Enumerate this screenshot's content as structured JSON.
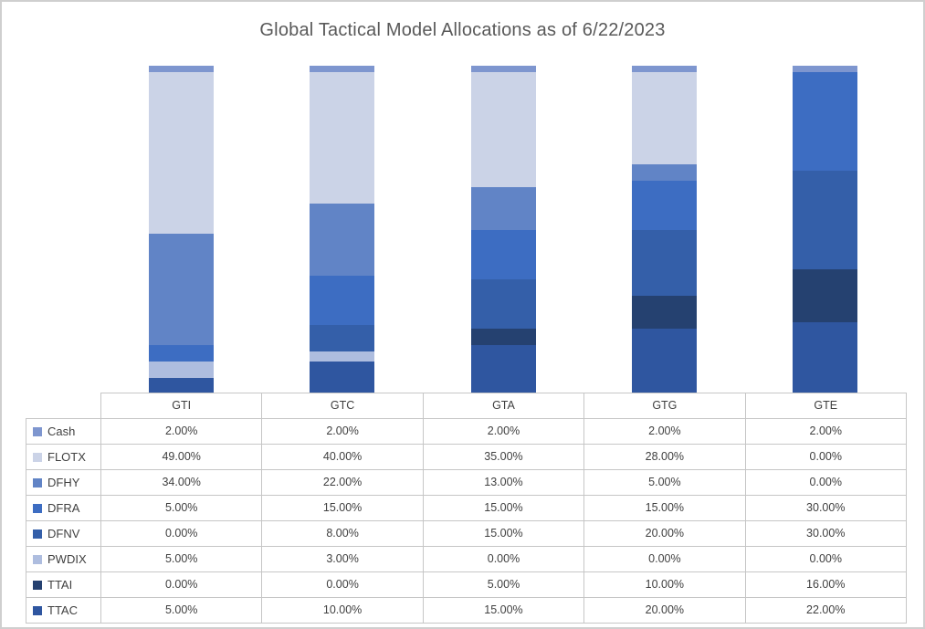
{
  "window": {
    "background": "#FFFFFF",
    "border_color": "#CFCFCF"
  },
  "chart_data": {
    "type": "bar",
    "variant": "stacked-column-100pct",
    "title": "Global Tactical Model Allocations as of 6/22/2023",
    "title_color": "#595959",
    "categories": [
      "GTI",
      "GTC",
      "GTA",
      "GTG",
      "GTE"
    ],
    "series": [
      {
        "name": "Cash",
        "color": "#7E96CF",
        "values": [
          2,
          2,
          2,
          2,
          2
        ]
      },
      {
        "name": "FLOTX",
        "color": "#CBD3E7",
        "values": [
          49,
          40,
          35,
          28,
          0
        ]
      },
      {
        "name": "DFHY",
        "color": "#6184C6",
        "values": [
          34,
          22,
          13,
          5,
          0
        ]
      },
      {
        "name": "DFRA",
        "color": "#3D6DC2",
        "values": [
          5,
          15,
          15,
          15,
          30
        ]
      },
      {
        "name": "DFNV",
        "color": "#345FA9",
        "values": [
          0,
          8,
          15,
          20,
          30
        ]
      },
      {
        "name": "PWDIX",
        "color": "#AEBDDF",
        "values": [
          5,
          3,
          0,
          0,
          0
        ]
      },
      {
        "name": "TTAI",
        "color": "#254170",
        "values": [
          0,
          0,
          5,
          10,
          16
        ]
      },
      {
        "name": "TTAC",
        "color": "#2F56A0",
        "values": [
          5,
          10,
          15,
          20,
          22
        ]
      }
    ],
    "stack_order_bottom_to_top": [
      "TTAC",
      "TTAI",
      "PWDIX",
      "DFNV",
      "DFRA",
      "DFHY",
      "FLOTX",
      "Cash"
    ],
    "ylim": [
      0,
      100
    ],
    "gridlines": false,
    "y_axis_visible": false,
    "legend_position": "data-table-left-column"
  },
  "data_table": {
    "column_headers": [
      "GTI",
      "GTC",
      "GTA",
      "GTG",
      "GTE"
    ],
    "rows": [
      {
        "label": "Cash",
        "values": [
          "2.00%",
          "2.00%",
          "2.00%",
          "2.00%",
          "2.00%"
        ]
      },
      {
        "label": "FLOTX",
        "values": [
          "49.00%",
          "40.00%",
          "35.00%",
          "28.00%",
          "0.00%"
        ]
      },
      {
        "label": "DFHY",
        "values": [
          "34.00%",
          "22.00%",
          "13.00%",
          "5.00%",
          "0.00%"
        ]
      },
      {
        "label": "DFRA",
        "values": [
          "5.00%",
          "15.00%",
          "15.00%",
          "15.00%",
          "30.00%"
        ]
      },
      {
        "label": "DFNV",
        "values": [
          "0.00%",
          "8.00%",
          "15.00%",
          "20.00%",
          "30.00%"
        ]
      },
      {
        "label": "PWDIX",
        "values": [
          "5.00%",
          "3.00%",
          "0.00%",
          "0.00%",
          "0.00%"
        ]
      },
      {
        "label": "TTAI",
        "values": [
          "0.00%",
          "0.00%",
          "5.00%",
          "10.00%",
          "16.00%"
        ]
      },
      {
        "label": "TTAC",
        "values": [
          "5.00%",
          "10.00%",
          "15.00%",
          "20.00%",
          "22.00%"
        ]
      }
    ],
    "text_color": "#404040",
    "border_color": "#C6C6C6"
  }
}
